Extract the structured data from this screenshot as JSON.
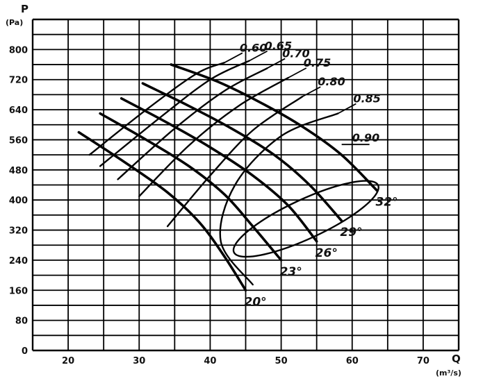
{
  "chart_data": {
    "type": "line",
    "title": "",
    "xlabel": "Q",
    "xunit": "(m³/s)",
    "ylabel": "P",
    "yunit": "(Pa)",
    "xlim": [
      15,
      75
    ],
    "ylim": [
      0,
      880
    ],
    "grid": true,
    "x_ticks": [
      20,
      30,
      40,
      50,
      60,
      70
    ],
    "y_ticks": [
      0,
      80,
      160,
      240,
      320,
      400,
      480,
      560,
      640,
      720,
      800
    ],
    "series": [
      {
        "name": "20°",
        "points": [
          [
            21.5,
            580
          ],
          [
            28,
            500
          ],
          [
            34,
            420
          ],
          [
            38.5,
            340
          ],
          [
            42,
            250
          ],
          [
            45,
            160
          ]
        ]
      },
      {
        "name": "23°",
        "points": [
          [
            24.5,
            630
          ],
          [
            31,
            560
          ],
          [
            37,
            490
          ],
          [
            42,
            415
          ],
          [
            46,
            330
          ],
          [
            50,
            240
          ]
        ]
      },
      {
        "name": "26°",
        "points": [
          [
            27.5,
            670
          ],
          [
            34,
            605
          ],
          [
            40,
            540
          ],
          [
            46,
            465
          ],
          [
            51,
            385
          ],
          [
            55,
            290
          ]
        ]
      },
      {
        "name": "29°",
        "points": [
          [
            30.5,
            710
          ],
          [
            37,
            650
          ],
          [
            43,
            590
          ],
          [
            49,
            520
          ],
          [
            54,
            440
          ],
          [
            58.5,
            345
          ]
        ]
      },
      {
        "name": "32°",
        "points": [
          [
            34.5,
            760
          ],
          [
            41,
            715
          ],
          [
            47,
            660
          ],
          [
            53,
            595
          ],
          [
            58.5,
            520
          ],
          [
            63.5,
            425
          ]
        ]
      }
    ],
    "efficiency_contours": [
      {
        "name": "0.60",
        "points": [
          [
            23,
            520
          ],
          [
            31,
            640
          ],
          [
            38,
            735
          ],
          [
            42,
            765
          ]
        ]
      },
      {
        "name": "0.65",
        "points": [
          [
            24.5,
            490
          ],
          [
            33,
            620
          ],
          [
            40,
            720
          ],
          [
            45.5,
            770
          ]
        ]
      },
      {
        "name": "0.70",
        "points": [
          [
            27,
            455
          ],
          [
            35,
            590
          ],
          [
            42,
            690
          ],
          [
            48,
            750
          ]
        ]
      },
      {
        "name": "0.75",
        "points": [
          [
            30,
            410
          ],
          [
            37,
            545
          ],
          [
            44,
            650
          ],
          [
            51,
            725
          ]
        ]
      },
      {
        "name": "0.80",
        "points": [
          [
            34,
            330
          ],
          [
            40,
            465
          ],
          [
            46,
            585
          ],
          [
            53,
            675
          ]
        ]
      },
      {
        "name": "0.85",
        "points": [
          [
            46,
            175
          ],
          [
            41.5,
            290
          ],
          [
            43.5,
            440
          ],
          [
            50,
            570
          ],
          [
            58,
            630
          ]
        ]
      },
      {
        "name": "0.90",
        "ellipse": {
          "cx": 53.5,
          "cy": 350,
          "rx": 11.2,
          "ry": 52,
          "angle_deg": -25
        }
      }
    ]
  }
}
